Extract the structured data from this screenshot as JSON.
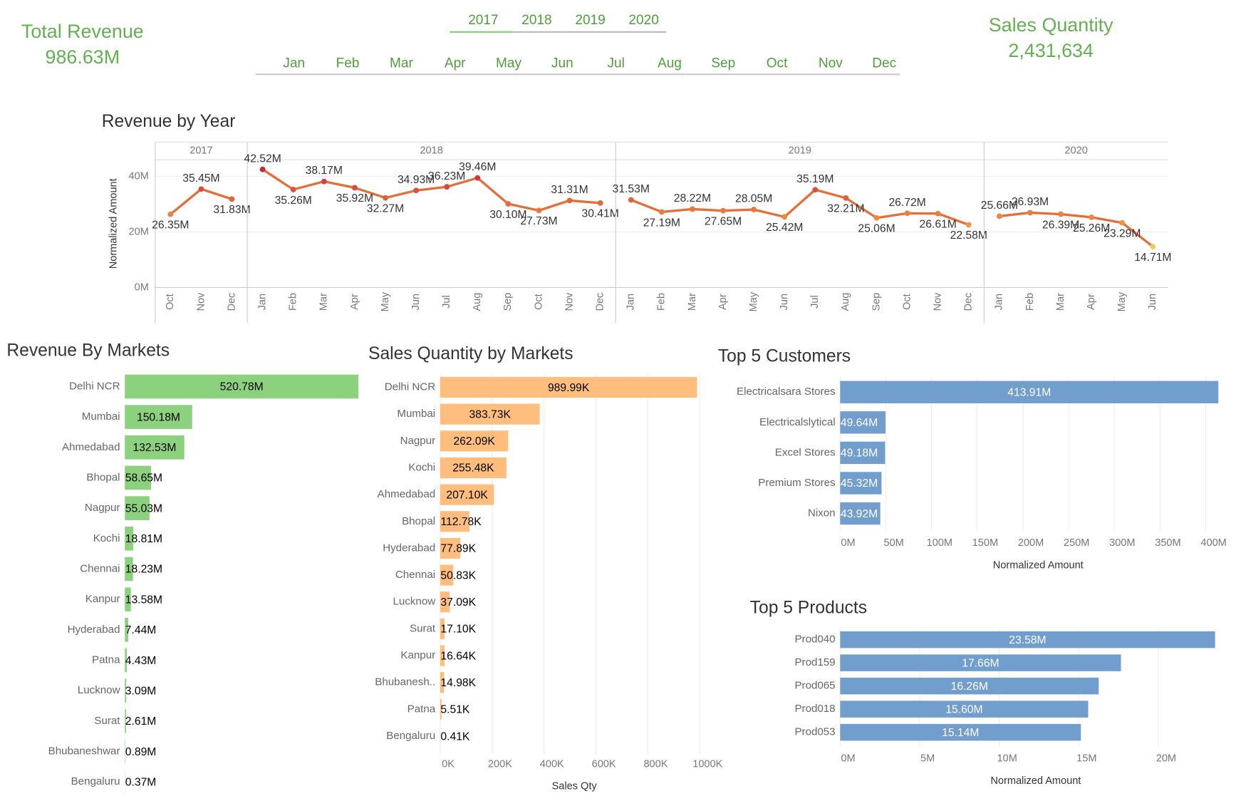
{
  "kpis": [
    {
      "label": "Total Revenue",
      "value": "986.63M"
    },
    {
      "label": "Sales Quantity",
      "value": "2,431,634"
    }
  ],
  "filters": {
    "years": [
      "2017",
      "2018",
      "2019",
      "2020"
    ],
    "months": [
      "Jan",
      "Feb",
      "Mar",
      "Apr",
      "May",
      "Jun",
      "Jul",
      "Aug",
      "Sep",
      "Oct",
      "Nov",
      "Dec"
    ]
  },
  "chart_data": [
    {
      "type": "line",
      "title": "Revenue by Year",
      "y_label": "Normalized Amount",
      "ylim": [
        0,
        46
      ],
      "yticks": [
        {
          "value": 0,
          "label": "0M"
        },
        {
          "value": 20,
          "label": "20M"
        },
        {
          "value": 40,
          "label": "40M"
        }
      ],
      "grid": true,
      "colors": [
        "#f6c85f",
        "#e8743b",
        "#c8283a"
      ],
      "panels": [
        {
          "name": "2017",
          "categories": [
            "Oct",
            "Nov",
            "Dec"
          ],
          "values": [
            26.35,
            35.45,
            31.83
          ],
          "value_labels": [
            "26.35M",
            "35.45M",
            "31.83M"
          ]
        },
        {
          "name": "2018",
          "categories": [
            "Jan",
            "Feb",
            "Mar",
            "Apr",
            "May",
            "Jun",
            "Jul",
            "Aug",
            "Sep",
            "Oct",
            "Nov",
            "Dec"
          ],
          "values": [
            42.52,
            35.26,
            38.17,
            35.92,
            32.27,
            34.93,
            36.23,
            39.46,
            30.1,
            27.73,
            31.31,
            30.41
          ],
          "value_labels": [
            "42.52M",
            "35.26M",
            "38.17M",
            "35.92M",
            "32.27M",
            "34.93M",
            "36.23M",
            "39.46M",
            "30.10M",
            "27.73M",
            "31.31M",
            "30.41M"
          ]
        },
        {
          "name": "2019",
          "categories": [
            "Jan",
            "Feb",
            "Mar",
            "Apr",
            "May",
            "Jun",
            "Jul",
            "Aug",
            "Sep",
            "Oct",
            "Nov",
            "Dec"
          ],
          "values": [
            31.53,
            27.19,
            28.22,
            27.65,
            28.05,
            25.42,
            35.19,
            32.21,
            25.06,
            26.72,
            26.61,
            22.58
          ],
          "value_labels": [
            "31.53M",
            "27.19M",
            "28.22M",
            "27.65M",
            "28.05M",
            "25.42M",
            "35.19M",
            "32.21M",
            "25.06M",
            "26.72M",
            "26.61M",
            "22.58M"
          ]
        },
        {
          "name": "2020",
          "categories": [
            "Jan",
            "Feb",
            "Mar",
            "Apr",
            "May",
            "Jun"
          ],
          "values": [
            25.66,
            26.93,
            26.39,
            25.26,
            23.29,
            14.71
          ],
          "value_labels": [
            "25.66M",
            "26.93M",
            "26.39M",
            "25.26M",
            "23.29M",
            "14.71M"
          ]
        }
      ]
    },
    {
      "type": "bar",
      "orientation": "horizontal",
      "title": "Revenue By Markets",
      "color": "#8cd17d",
      "xlim": [
        0,
        525
      ],
      "categories": [
        "Delhi NCR",
        "Mumbai",
        "Ahmedabad",
        "Bhopal",
        "Nagpur",
        "Kochi",
        "Chennai",
        "Kanpur",
        "Hyderabad",
        "Patna",
        "Lucknow",
        "Surat",
        "Bhubaneshwar",
        "Bengaluru"
      ],
      "values": [
        520.78,
        150.18,
        132.53,
        58.65,
        55.03,
        18.81,
        18.23,
        13.58,
        7.44,
        4.43,
        3.09,
        2.61,
        0.89,
        0.37
      ],
      "value_labels": [
        "520.78M",
        "150.18M",
        "132.53M",
        "58.65M",
        "55.03M",
        "18.81M",
        "18.23M",
        "13.58M",
        "7.44M",
        "4.43M",
        "3.09M",
        "2.61M",
        "0.89M",
        "0.37M"
      ]
    },
    {
      "type": "bar",
      "orientation": "horizontal",
      "title": "Sales Quantity by Markets",
      "x_label": "Sales Qty",
      "color": "#ffbe7d",
      "xlim": [
        0,
        1040
      ],
      "xticks": [
        {
          "value": 0,
          "label": "0K"
        },
        {
          "value": 200,
          "label": "200K"
        },
        {
          "value": 400,
          "label": "400K"
        },
        {
          "value": 600,
          "label": "600K"
        },
        {
          "value": 800,
          "label": "800K"
        },
        {
          "value": 1000,
          "label": "1000K"
        }
      ],
      "categories": [
        "Delhi NCR",
        "Mumbai",
        "Nagpur",
        "Kochi",
        "Ahmedabad",
        "Bhopal",
        "Hyderabad",
        "Chennai",
        "Lucknow",
        "Surat",
        "Kanpur",
        "Bhubanesh..",
        "Patna",
        "Bengaluru"
      ],
      "values": [
        989.99,
        383.73,
        262.09,
        255.48,
        207.1,
        112.78,
        77.89,
        50.83,
        37.09,
        17.1,
        16.64,
        14.98,
        5.51,
        0.41
      ],
      "value_labels": [
        "989.99K",
        "383.73K",
        "262.09K",
        "255.48K",
        "207.10K",
        "112.78K",
        "77.89K",
        "50.83K",
        "37.09K",
        "17.10K",
        "16.64K",
        "14.98K",
        "5.51K",
        "0.41K"
      ]
    },
    {
      "type": "bar",
      "orientation": "horizontal",
      "title": "Top 5 Customers",
      "x_label": "Normalized Amount",
      "color": "#729ece",
      "xlim": [
        0,
        415
      ],
      "xticks": [
        {
          "value": 0,
          "label": "0M"
        },
        {
          "value": 50,
          "label": "50M"
        },
        {
          "value": 100,
          "label": "100M"
        },
        {
          "value": 150,
          "label": "150M"
        },
        {
          "value": 200,
          "label": "200M"
        },
        {
          "value": 250,
          "label": "250M"
        },
        {
          "value": 300,
          "label": "300M"
        },
        {
          "value": 350,
          "label": "350M"
        },
        {
          "value": 400,
          "label": "400M"
        }
      ],
      "categories": [
        "Electricalsara Stores",
        "Electricalslytical",
        "Excel Stores",
        "Premium Stores",
        "Nixon"
      ],
      "values": [
        413.91,
        49.64,
        49.18,
        45.32,
        43.92
      ],
      "value_labels": [
        "413.91M",
        "49.64M",
        "49.18M",
        "45.32M",
        "43.92M"
      ]
    },
    {
      "type": "bar",
      "orientation": "horizontal",
      "title": "Top 5 Products",
      "x_label": "Normalized Amount",
      "color": "#729ece",
      "xlim": [
        0,
        24
      ],
      "xticks": [
        {
          "value": 0,
          "label": "0M"
        },
        {
          "value": 5,
          "label": "5M"
        },
        {
          "value": 10,
          "label": "10M"
        },
        {
          "value": 15,
          "label": "15M"
        },
        {
          "value": 20,
          "label": "20M"
        }
      ],
      "categories": [
        "Prod040",
        "Prod159",
        "Prod065",
        "Prod018",
        "Prod053"
      ],
      "values": [
        23.58,
        17.66,
        16.26,
        15.6,
        15.14
      ],
      "value_labels": [
        "23.58M",
        "17.66M",
        "16.26M",
        "15.60M",
        "15.14M"
      ]
    }
  ]
}
